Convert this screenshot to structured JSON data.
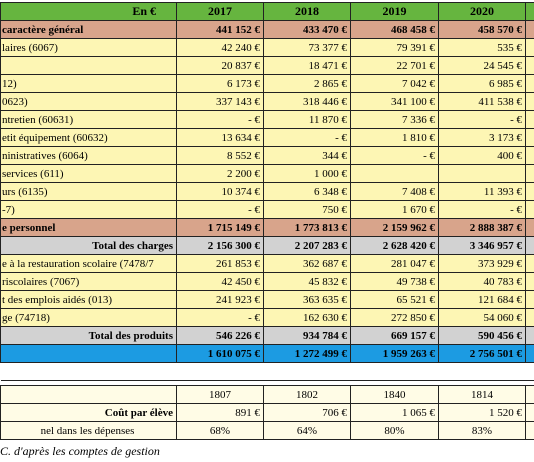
{
  "table": {
    "header": [
      "En €",
      "2017",
      "2018",
      "2019",
      "2020"
    ],
    "rows": [
      [
        "caractère général",
        "441 152 €",
        "433 470 €",
        "468 458 €",
        "458 570 €"
      ],
      [
        "laires (6067)",
        "42 240 €",
        "73 377 €",
        "79 391 €",
        "535 €"
      ],
      [
        null,
        "20 837 €",
        "18 471 €",
        "22 701 €",
        "24 545 €"
      ],
      [
        "12)",
        "6 173 €",
        "2 865 €",
        "7 042 €",
        "6 985 €"
      ],
      [
        "0623)",
        "337 143 €",
        "318 446 €",
        "341 100 €",
        "411 538 €"
      ],
      [
        "ntretien (60631)",
        "- €",
        "11 870 €",
        "7 336 €",
        "- €"
      ],
      [
        "etit équipement (60632)",
        "13 634 €",
        "- €",
        "1 810 €",
        "3 173 €"
      ],
      [
        "ninistratives (6064)",
        "8 552 €",
        "344 €",
        "- €",
        "400 €"
      ],
      [
        "services (611)",
        "2 200 €",
        "1 000 €",
        null,
        null
      ],
      [
        "urs (6135)",
        "10 374 €",
        "6 348 €",
        "7 408 €",
        "11 393 €"
      ],
      [
        "-7)",
        "- €",
        "750 €",
        "1 670 €",
        "- €"
      ],
      [
        "e personnel",
        "1 715 149 €",
        "1 773 813 €",
        "2 159 962 €",
        "2 888 387 €"
      ],
      [
        "Total des charges",
        "2 156 300 €",
        "2 207 283 €",
        "2 628 420 €",
        "3 346 957 €"
      ],
      [
        "e à la restauration scolaire (7478/7",
        "261 853 €",
        "362 687 €",
        "281 047 €",
        "373 929 €"
      ],
      [
        "riscolaires (7067)",
        "42 450 €",
        "45 832 €",
        "49 738 €",
        "40 783 €"
      ],
      [
        "t des emplois aidés (013)",
        "241 923 €",
        "363 635 €",
        "65 521 €",
        "121 684 €"
      ],
      [
        "ge (74718)",
        "- €",
        "162 630 €",
        "272 850 €",
        "54 060 €"
      ],
      [
        "Total des produits",
        "546 226 €",
        "934 784 €",
        "669 157 €",
        "590 456 €"
      ],
      [
        null,
        "1 610 075 €",
        "1 272 499 €",
        "1 959 263 €",
        "2 756 501 €"
      ],
      [
        null,
        "1807",
        "1802",
        "1840",
        "1814"
      ],
      [
        "Coût par élève",
        "891 €",
        "706 €",
        "1 065 €",
        "1 520 €"
      ],
      [
        "nel dans les dépenses",
        "68%",
        "64%",
        "80%",
        "83%"
      ]
    ]
  },
  "caption": "C. d'après les comptes de gestion"
}
